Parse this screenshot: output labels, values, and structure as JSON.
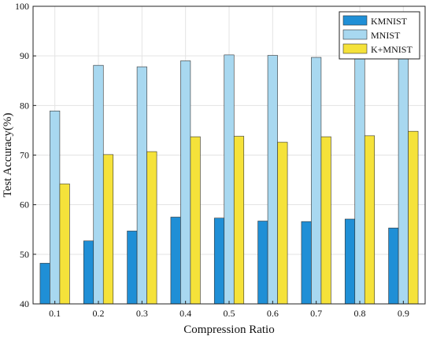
{
  "chart_data": {
    "type": "bar",
    "xlabel": "Compression Ratio",
    "ylabel": "Test Accuracy(%)",
    "categories": [
      "0.1",
      "0.2",
      "0.3",
      "0.4",
      "0.5",
      "0.6",
      "0.7",
      "0.8",
      "0.9"
    ],
    "ylim": [
      40,
      100
    ],
    "yticks": [
      "40",
      "50",
      "60",
      "70",
      "80",
      "90",
      "100"
    ],
    "grid": true,
    "legend_position": "top-right",
    "series": [
      {
        "name": "KMNIST",
        "color": "#1f8fd6",
        "values": [
          48.2,
          52.7,
          54.7,
          57.5,
          57.3,
          56.7,
          56.6,
          57.1,
          55.3
        ]
      },
      {
        "name": "MNIST",
        "color": "#a8d8f0",
        "values": [
          78.9,
          88.1,
          87.8,
          89.0,
          90.2,
          90.1,
          89.7,
          90.0,
          89.4
        ]
      },
      {
        "name": "K+MNIST",
        "color": "#f5e23a",
        "values": [
          64.2,
          70.1,
          70.7,
          73.7,
          73.8,
          72.6,
          73.7,
          73.9,
          74.8
        ]
      }
    ]
  }
}
